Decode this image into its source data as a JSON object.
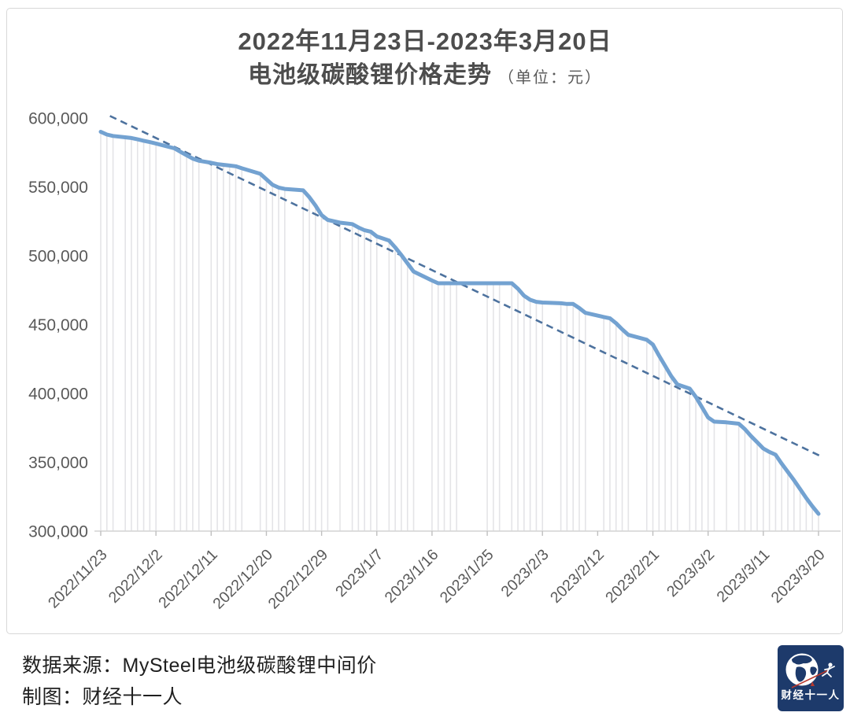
{
  "title": {
    "line1": "2022年11月23日-2023年3月20日",
    "line2": "电池级碳酸锂价格走势",
    "unit": "（单位：元）"
  },
  "chart_data": {
    "type": "line",
    "title": "2022年11月23日-2023年3月20日 电池级碳酸锂价格走势",
    "unit": "元",
    "xlabel": "",
    "ylabel": "",
    "ylim": [
      300000,
      600000
    ],
    "grid": false,
    "legend": false,
    "droplines": true,
    "y_ticks": [
      {
        "value": 600000,
        "label": "600,000"
      },
      {
        "value": 550000,
        "label": "550,000"
      },
      {
        "value": 500000,
        "label": "500,000"
      },
      {
        "value": 450000,
        "label": "450,000"
      },
      {
        "value": 400000,
        "label": "400,000"
      },
      {
        "value": 350000,
        "label": "350,000"
      },
      {
        "value": 300000,
        "label": "300,000"
      }
    ],
    "x_ticks": [
      "2022/11/23",
      "2022/12/2",
      "2022/12/11",
      "2022/12/20",
      "2022/12/29",
      "2023/1/7",
      "2023/1/16",
      "2023/1/25",
      "2023/2/3",
      "2023/2/12",
      "2023/2/21",
      "2023/3/2",
      "2023/3/11",
      "2023/3/20"
    ],
    "x_tick_interval_days": 9,
    "series": [
      {
        "name": "电池级碳酸锂中间价",
        "color": "#73a2d1",
        "points_day_value": [
          [
            0,
            590000
          ],
          [
            1,
            588000
          ],
          [
            2,
            587000
          ],
          [
            4,
            586000
          ],
          [
            5,
            585500
          ],
          [
            6,
            584500
          ],
          [
            7,
            583500
          ],
          [
            8,
            582500
          ],
          [
            9,
            581500
          ],
          [
            12,
            578000
          ],
          [
            13,
            575500
          ],
          [
            14,
            573000
          ],
          [
            15,
            570500
          ],
          [
            16,
            569000
          ],
          [
            18,
            567500
          ],
          [
            19,
            566500
          ],
          [
            20,
            566000
          ],
          [
            21,
            565500
          ],
          [
            22,
            565000
          ],
          [
            23,
            563500
          ],
          [
            26,
            559500
          ],
          [
            27,
            555500
          ],
          [
            28,
            551500
          ],
          [
            29,
            549500
          ],
          [
            30,
            548500
          ],
          [
            33,
            547500
          ],
          [
            34,
            542500
          ],
          [
            35,
            536500
          ],
          [
            36,
            529500
          ],
          [
            37,
            526000
          ],
          [
            39,
            524000
          ],
          [
            41,
            523000
          ],
          [
            42,
            520500
          ],
          [
            43,
            518500
          ],
          [
            44,
            517500
          ],
          [
            45,
            514000
          ],
          [
            47,
            511000
          ],
          [
            48,
            506000
          ],
          [
            49,
            500500
          ],
          [
            50,
            494500
          ],
          [
            51,
            488500
          ],
          [
            54,
            482000
          ],
          [
            55,
            480000
          ],
          [
            56,
            480000
          ],
          [
            57,
            480000
          ],
          [
            58,
            480000
          ],
          [
            63,
            480000
          ],
          [
            64,
            480000
          ],
          [
            65,
            480000
          ],
          [
            67,
            480000
          ],
          [
            68,
            476000
          ],
          [
            69,
            471000
          ],
          [
            70,
            468000
          ],
          [
            71,
            466500
          ],
          [
            72,
            466000
          ],
          [
            75,
            465500
          ],
          [
            76,
            465000
          ],
          [
            77,
            465000
          ],
          [
            78,
            462000
          ],
          [
            79,
            458500
          ],
          [
            82,
            455500
          ],
          [
            83,
            454500
          ],
          [
            84,
            451000
          ],
          [
            85,
            446500
          ],
          [
            86,
            442500
          ],
          [
            89,
            439000
          ],
          [
            90,
            435500
          ],
          [
            91,
            427500
          ],
          [
            92,
            420000
          ],
          [
            93,
            412500
          ],
          [
            94,
            406500
          ],
          [
            96,
            403500
          ],
          [
            97,
            397500
          ],
          [
            98,
            390000
          ],
          [
            99,
            382500
          ],
          [
            100,
            379500
          ],
          [
            102,
            379000
          ],
          [
            104,
            378000
          ],
          [
            105,
            374000
          ],
          [
            106,
            369000
          ],
          [
            107,
            364500
          ],
          [
            108,
            360000
          ],
          [
            109,
            357500
          ],
          [
            110,
            355500
          ],
          [
            111,
            349000
          ],
          [
            112,
            343000
          ],
          [
            113,
            337000
          ],
          [
            114,
            330500
          ],
          [
            115,
            324000
          ],
          [
            116,
            318000
          ],
          [
            117,
            312500
          ]
        ]
      }
    ],
    "trendline": {
      "style": "dashed",
      "color": "#4d729e",
      "start_day": 1.5,
      "start_value": 601500,
      "end_day": 117.3,
      "end_value": 354500
    },
    "colors": {
      "line": "#73a2d1",
      "trend": "#4d729e",
      "droplines": "#e4e4e7",
      "axis": "#d4d4d4",
      "tick_text": "#595959"
    }
  },
  "footer": {
    "source": "数据来源：MySteel电池级碳酸锂中间价",
    "credit": "制图：财经十一人"
  },
  "logo": {
    "text": "财经十一人",
    "background": "#1d3a6b"
  }
}
